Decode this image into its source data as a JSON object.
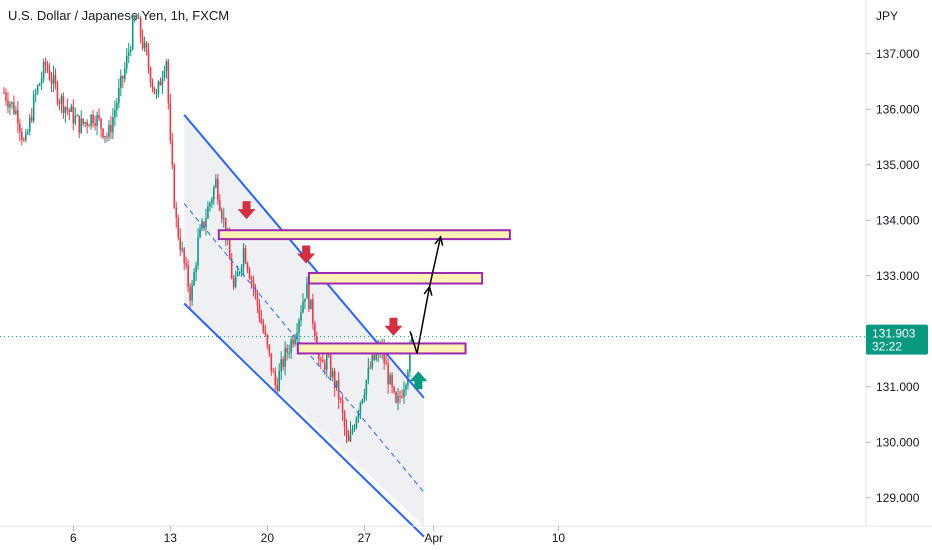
{
  "header": {
    "title": "U.S. Dollar / Japanese Yen, 1h, FXCM"
  },
  "price_axis": {
    "currency": "JPY",
    "ticks": [
      "137.000",
      "136.000",
      "135.000",
      "134.000",
      "133.000",
      "132.000",
      "131.000",
      "130.000",
      "129.000"
    ]
  },
  "time_axis": {
    "ticks": [
      {
        "label": "6",
        "t": 6
      },
      {
        "label": "13",
        "t": 13
      },
      {
        "label": "20",
        "t": 20
      },
      {
        "label": "27",
        "t": 27
      },
      {
        "label": "Apr",
        "t": 32
      },
      {
        "label": "10",
        "t": 41
      }
    ]
  },
  "last_price": {
    "value": "131.903",
    "countdown": "32:22",
    "price": 131.903,
    "color": "#089981"
  },
  "colors": {
    "up": "#089981",
    "down": "#f23645",
    "channel": "#2962ff",
    "zone_fill": "#fff2b3",
    "zone_border": "#9c27b0",
    "arrow_down": "#d32f3f",
    "arrow_up": "#089981"
  },
  "chart_data": {
    "type": "candlestick",
    "title": "U.S. Dollar / Japanese Yen, 1h, FXCM",
    "xlabel": "",
    "ylabel": "JPY",
    "ylim": [
      128.6,
      138.0
    ],
    "xlim": [
      1.0,
      44.0
    ],
    "grid": false,
    "keypoints": [
      {
        "t": 1.0,
        "p": 136.3
      },
      {
        "t": 2.0,
        "p": 135.9
      },
      {
        "t": 2.5,
        "p": 135.3
      },
      {
        "t": 3.2,
        "p": 136.2
      },
      {
        "t": 4.0,
        "p": 136.8
      },
      {
        "t": 5.0,
        "p": 136.2
      },
      {
        "t": 6.5,
        "p": 135.7
      },
      {
        "t": 7.5,
        "p": 135.9
      },
      {
        "t": 8.5,
        "p": 135.5
      },
      {
        "t": 9.8,
        "p": 136.8
      },
      {
        "t": 10.5,
        "p": 137.7
      },
      {
        "t": 11.2,
        "p": 137.0
      },
      {
        "t": 12.0,
        "p": 136.2
      },
      {
        "t": 12.7,
        "p": 137.0
      },
      {
        "t": 13.0,
        "p": 135.3
      },
      {
        "t": 13.4,
        "p": 134.0
      },
      {
        "t": 14.0,
        "p": 133.2
      },
      {
        "t": 14.5,
        "p": 132.6
      },
      {
        "t": 15.0,
        "p": 133.6
      },
      {
        "t": 16.3,
        "p": 134.7
      },
      {
        "t": 17.0,
        "p": 133.8
      },
      {
        "t": 17.6,
        "p": 132.7
      },
      {
        "t": 18.3,
        "p": 133.5
      },
      {
        "t": 19.0,
        "p": 132.8
      },
      {
        "t": 19.8,
        "p": 131.9
      },
      {
        "t": 20.6,
        "p": 131.0
      },
      {
        "t": 21.2,
        "p": 131.5
      },
      {
        "t": 22.0,
        "p": 132.0
      },
      {
        "t": 22.8,
        "p": 132.8
      },
      {
        "t": 23.4,
        "p": 132.1
      },
      {
        "t": 23.8,
        "p": 131.3
      },
      {
        "t": 24.3,
        "p": 131.5
      },
      {
        "t": 25.2,
        "p": 130.8
      },
      {
        "t": 25.8,
        "p": 129.9
      },
      {
        "t": 26.5,
        "p": 130.6
      },
      {
        "t": 27.5,
        "p": 131.4
      },
      {
        "t": 28.2,
        "p": 131.7
      },
      {
        "t": 28.8,
        "p": 131.1
      },
      {
        "t": 29.3,
        "p": 130.6
      },
      {
        "t": 30.0,
        "p": 131.2
      },
      {
        "t": 30.5,
        "p": 131.9
      }
    ],
    "channel": {
      "upper": {
        "t1": 14.0,
        "p1": 135.9,
        "t2": 31.3,
        "p2": 130.8
      },
      "lower": {
        "t1": 14.0,
        "p1": 132.5,
        "t2": 31.3,
        "p2": 128.3
      },
      "mid": {
        "t1": 14.0,
        "p1": 134.3,
        "t2": 31.3,
        "p2": 129.1
      },
      "shade_until": 31.3
    },
    "zones": [
      {
        "t1": 16.5,
        "t2": 37.5,
        "p_top": 133.82,
        "p_bottom": 133.66
      },
      {
        "t1": 23.0,
        "t2": 35.5,
        "p_top": 133.05,
        "p_bottom": 132.86
      },
      {
        "t1": 22.2,
        "t2": 34.3,
        "p_top": 131.78,
        "p_bottom": 131.6
      }
    ],
    "down_markers": [
      {
        "t": 18.5,
        "p": 134.2
      },
      {
        "t": 22.8,
        "p": 133.4
      },
      {
        "t": 29.1,
        "p": 132.1
      }
    ],
    "up_markers": [
      {
        "t": 30.9,
        "p": 131.1
      }
    ],
    "projection": [
      {
        "t": 30.3,
        "p": 132.0
      },
      {
        "t": 30.8,
        "p": 131.6
      },
      {
        "t": 31.7,
        "p": 132.8
      },
      {
        "t": 32.5,
        "p": 133.7
      }
    ]
  }
}
